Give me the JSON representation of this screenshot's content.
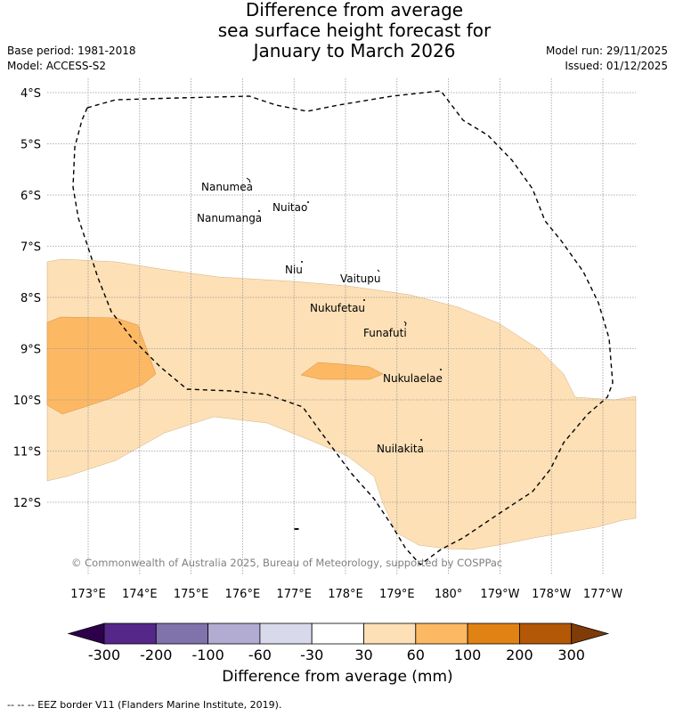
{
  "title": {
    "line1": "Difference from average",
    "line2": "sea surface height forecast for",
    "line3": "January to March 2026"
  },
  "meta_left": {
    "base_period": "Base period: 1981-2018",
    "model": "Model: ACCESS-S2"
  },
  "meta_right": {
    "model_run": "Model run: 29/11/2025",
    "issued": "Issued: 01/12/2025"
  },
  "map": {
    "lat_labels": [
      "4°S",
      "5°S",
      "6°S",
      "7°S",
      "8°S",
      "9°S",
      "10°S",
      "11°S",
      "12°S"
    ],
    "lon_labels": [
      "173°E",
      "174°E",
      "175°E",
      "176°E",
      "177°E",
      "178°E",
      "179°E",
      "180°",
      "179°W",
      "178°W",
      "177°W"
    ],
    "islands": [
      {
        "name": "Nanumea"
      },
      {
        "name": "Nuitao"
      },
      {
        "name": "Nanumanga"
      },
      {
        "name": "Niu"
      },
      {
        "name": "Vaitupu"
      },
      {
        "name": "Nukufetau"
      },
      {
        "name": "Funafuti"
      },
      {
        "name": "Nukulaelae"
      },
      {
        "name": "Nuilakita"
      }
    ],
    "copyright": "© Commonwealth of Australia 2025, Bureau of Meteorology, supported by COSPPac",
    "colors": {
      "band_30_60": "#fde0b6",
      "band_60_100": "#fdb863",
      "grid": "#999999"
    }
  },
  "colorbar": {
    "labels": [
      "-300",
      "-200",
      "-100",
      "-60",
      "-30",
      "30",
      "60",
      "100",
      "200",
      "300"
    ],
    "colors": [
      "#2d004b",
      "#542788",
      "#8073ac",
      "#b2abd2",
      "#d8daeb",
      "#ffffff",
      "#fee0b6",
      "#fdb863",
      "#e08214",
      "#b35806",
      "#7f3b08"
    ],
    "title": "Difference from average (mm)"
  },
  "footnote": "--  --  -- EEZ border V11 (Flanders Marine Institute, 2019)."
}
